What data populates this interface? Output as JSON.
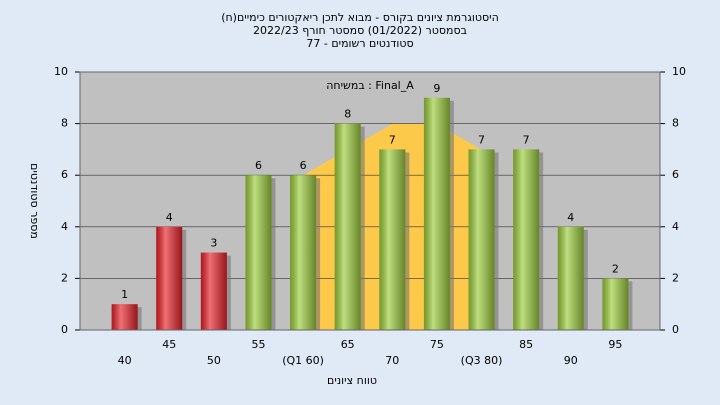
{
  "chart_data": {
    "type": "bar",
    "title": [
      "היסטוגרמת ציונים בקורס - מבוא לתכן ריאקטורים כימיים(ח)",
      "בסמסטר (01/2022) סמסטר חורף 2022/23",
      "סטודנטים רשומים - 77"
    ],
    "legend": "במשיחה : Final_A",
    "x_label": "טווח ציונים",
    "y_label": "מספר סטודנטים",
    "categories": [
      "40",
      "45",
      "50",
      "55",
      "(Q1 60)",
      "65",
      "70",
      "75",
      "(Q3 80)",
      "85",
      "90",
      "95"
    ],
    "values": [
      1,
      4,
      3,
      6,
      6,
      8,
      7,
      9,
      7,
      7,
      4,
      2
    ],
    "colors": [
      "#e8222a",
      "#e8222a",
      "#e8222a",
      "#9ccc3c",
      "#9ccc3c",
      "#9ccc3c",
      "#9ccc3c",
      "#9ccc3c",
      "#9ccc3c",
      "#9ccc3c",
      "#9ccc3c",
      "#9ccc3c"
    ],
    "ylim": [
      0,
      10
    ],
    "yticks": [
      0,
      2,
      4,
      6,
      8,
      10
    ],
    "y2lim": [
      0,
      10
    ],
    "y2ticks": [
      0,
      2,
      4,
      6,
      8,
      10
    ],
    "grid": true
  }
}
